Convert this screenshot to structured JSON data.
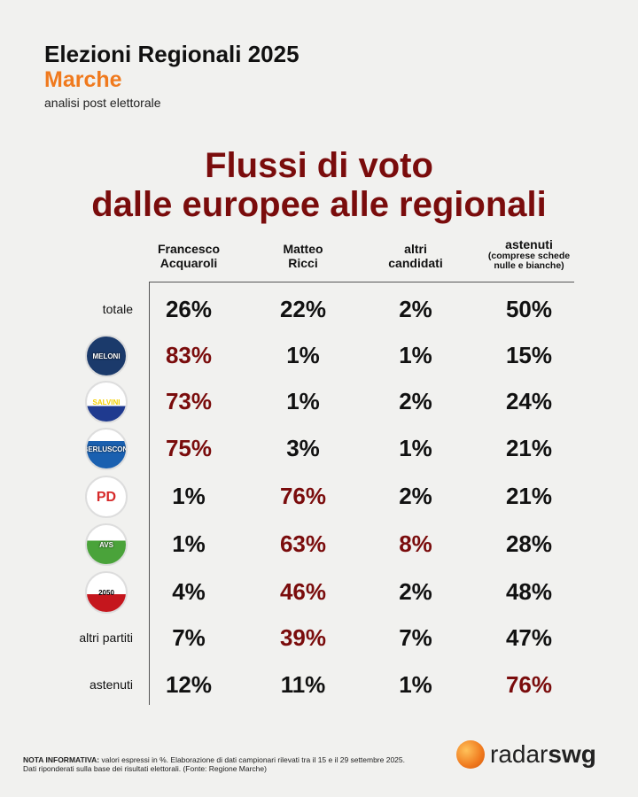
{
  "header": {
    "title": "Elezioni Regionali 2025",
    "region": "Marche",
    "subtitle": "analisi post elettorale"
  },
  "chart_data": {
    "type": "table",
    "title_line1": "Flussi di voto",
    "title_line2": "dalle europee alle regionali",
    "columns": [
      {
        "line1": "Francesco",
        "line2": "Acquaroli"
      },
      {
        "line1": "Matteo",
        "line2": "Ricci"
      },
      {
        "line1": "altri",
        "line2": "candidati"
      },
      {
        "line1": "astenuti",
        "note1": "(comprese schede",
        "note2": "nulle e bianche)"
      }
    ],
    "rows": [
      {
        "label": "totale",
        "values": [
          "26%",
          "22%",
          "2%",
          "50%"
        ],
        "highlight": []
      },
      {
        "logo": "Fratelli d'Italia Giorgia Meloni",
        "values": [
          "83%",
          "1%",
          "1%",
          "15%"
        ],
        "highlight": [
          0
        ]
      },
      {
        "logo": "Lega Salvini Premier",
        "values": [
          "73%",
          "1%",
          "2%",
          "24%"
        ],
        "highlight": [
          0
        ]
      },
      {
        "logo": "Forza Italia Berlusconi Presidente Noi Moderati",
        "values": [
          "75%",
          "3%",
          "1%",
          "21%"
        ],
        "highlight": [
          0
        ]
      },
      {
        "logo": "PD Partito Democratico",
        "values": [
          "1%",
          "76%",
          "2%",
          "21%"
        ],
        "highlight": [
          1
        ]
      },
      {
        "logo": "Alleanza Verdi Sinistra Europa Verde Sinistra Italiana",
        "values": [
          "1%",
          "63%",
          "8%",
          "28%"
        ],
        "highlight": [
          1,
          2
        ]
      },
      {
        "logo": "Movimento 5 Stelle 2050 pace",
        "values": [
          "4%",
          "46%",
          "2%",
          "48%"
        ],
        "highlight": [
          1
        ]
      },
      {
        "label": "altri partiti",
        "values": [
          "7%",
          "39%",
          "7%",
          "47%"
        ],
        "highlight": [
          1
        ]
      },
      {
        "label": "astenuti",
        "values": [
          "12%",
          "11%",
          "1%",
          "76%"
        ],
        "highlight": [
          3
        ]
      }
    ]
  },
  "footer": {
    "note_bold": "NOTA INFORMATIVA:",
    "note_text": " valori espressi in %. Elaborazione di dati campionari rilevati tra il 15 e il 29 settembre 2025.",
    "note_line2": "Dati riponderati sulla base dei risultati elettorali. (Fonte: Regione Marche)",
    "brand_a": "radar",
    "brand_b": "swg"
  },
  "colors": {
    "highlight": "#7a0c0c",
    "accent": "#f07a1e"
  }
}
